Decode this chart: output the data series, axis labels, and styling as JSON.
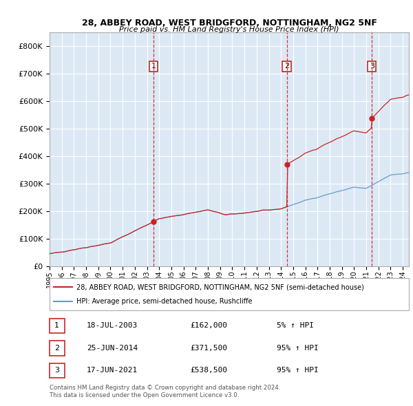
{
  "title1": "28, ABBEY ROAD, WEST BRIDGFORD, NOTTINGHAM, NG2 5NF",
  "title2": "Price paid vs. HM Land Registry's House Price Index (HPI)",
  "background_color": "#dce9f5",
  "plot_background": "#dce9f5",
  "hpi_color": "#6699cc",
  "price_color": "#cc2222",
  "transactions": [
    {
      "label": "1",
      "date_str": "18-JUL-2003",
      "date_num": 2003.54,
      "price": 162000,
      "pct": "5%"
    },
    {
      "label": "2",
      "date_str": "25-JUN-2014",
      "date_num": 2014.48,
      "price": 371500,
      "pct": "95%"
    },
    {
      "label": "3",
      "date_str": "17-JUN-2021",
      "date_num": 2021.46,
      "price": 538500,
      "pct": "95%"
    }
  ],
  "legend_line1": "28, ABBEY ROAD, WEST BRIDGFORD, NOTTINGHAM, NG2 5NF (semi-detached house)",
  "legend_line2": "HPI: Average price, semi-detached house, Rushcliffe",
  "footer1": "Contains HM Land Registry data © Crown copyright and database right 2024.",
  "footer2": "This data is licensed under the Open Government Licence v3.0.",
  "ylim": [
    0,
    850000
  ],
  "xlim_start": 1995.0,
  "xlim_end": 2024.5,
  "ytick_labels": [
    "£0",
    "£100K",
    "£200K",
    "£300K",
    "£400K",
    "£500K",
    "£600K",
    "£700K",
    "£800K"
  ],
  "ytick_values": [
    0,
    100000,
    200000,
    300000,
    400000,
    500000,
    600000,
    700000,
    800000
  ]
}
